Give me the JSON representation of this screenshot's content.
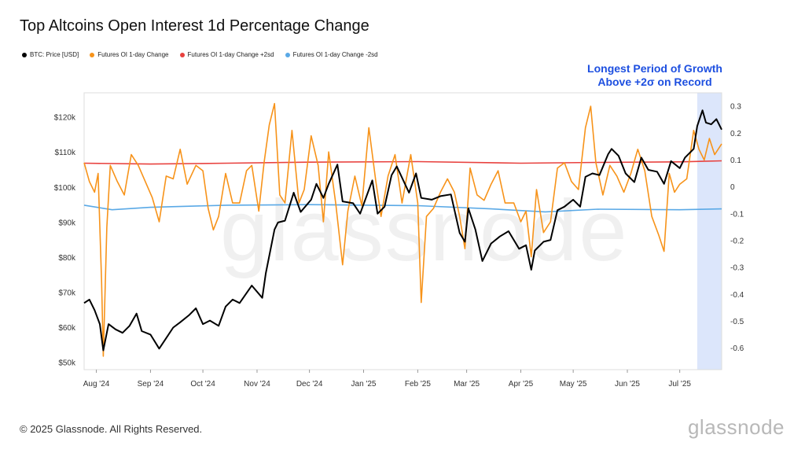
{
  "title": "Top Altcoins Open Interest 1d Percentage Change",
  "legend": [
    {
      "label": "BTC: Price [USD]",
      "color": "#000000"
    },
    {
      "label": "Futures OI 1-day Change",
      "color": "#f7931a"
    },
    {
      "label": "Futures OI 1-day Change +2sd",
      "color": "#e8413e"
    },
    {
      "label": "Futures OI 1-day Change -2sd",
      "color": "#5aa9e6"
    }
  ],
  "annotation": {
    "line1": "Longest Period of Growth",
    "line2": "Above +2σ on Record"
  },
  "footer": "© 2025 Glassnode. All Rights Reserved.",
  "brand": "glassnode",
  "watermark": "glassnode",
  "chart_data": {
    "type": "line",
    "x_ticks": [
      "Aug '24",
      "Sep '24",
      "Oct '24",
      "Nov '24",
      "Dec '24",
      "Jan '25",
      "Feb '25",
      "Mar '25",
      "Apr '25",
      "May '25",
      "Jun '25",
      "Jul '25"
    ],
    "y_left_ticks": [
      "$50k",
      "$60k",
      "$70k",
      "$80k",
      "$90k",
      "$100k",
      "$110k",
      "$120k"
    ],
    "y_right_ticks": [
      "0.3",
      "0.2",
      "0.1",
      "0",
      "-0.1",
      "-0.2",
      "-0.3",
      "-0.4",
      "-0.5",
      "-0.6"
    ],
    "ylim_left": [
      48000,
      127000
    ],
    "ylim_right": [
      -0.68,
      0.35
    ],
    "highlight_region": {
      "from": "2025-07-11",
      "to": "2025-07-25",
      "color": "#dce6fb"
    },
    "series": [
      {
        "name": "BTC: Price [USD]",
        "axis": "left",
        "color": "#000000",
        "points": [
          [
            "2024-07-25",
            67000
          ],
          [
            "2024-07-28",
            68000
          ],
          [
            "2024-07-31",
            65000
          ],
          [
            "2024-08-03",
            61000
          ],
          [
            "2024-08-05",
            53500
          ],
          [
            "2024-08-08",
            61000
          ],
          [
            "2024-08-12",
            59500
          ],
          [
            "2024-08-16",
            58500
          ],
          [
            "2024-08-20",
            60500
          ],
          [
            "2024-08-24",
            64000
          ],
          [
            "2024-08-27",
            59000
          ],
          [
            "2024-09-01",
            58000
          ],
          [
            "2024-09-06",
            54000
          ],
          [
            "2024-09-10",
            57000
          ],
          [
            "2024-09-14",
            60000
          ],
          [
            "2024-09-18",
            61500
          ],
          [
            "2024-09-23",
            63500
          ],
          [
            "2024-09-27",
            65500
          ],
          [
            "2024-10-01",
            61000
          ],
          [
            "2024-10-05",
            62000
          ],
          [
            "2024-10-10",
            60500
          ],
          [
            "2024-10-14",
            66000
          ],
          [
            "2024-10-18",
            68000
          ],
          [
            "2024-10-22",
            67000
          ],
          [
            "2024-10-29",
            72000
          ],
          [
            "2024-11-04",
            68500
          ],
          [
            "2024-11-06",
            75500
          ],
          [
            "2024-11-11",
            88000
          ],
          [
            "2024-11-13",
            90000
          ],
          [
            "2024-11-17",
            90500
          ],
          [
            "2024-11-22",
            98500
          ],
          [
            "2024-11-26",
            93000
          ],
          [
            "2024-12-02",
            96500
          ],
          [
            "2024-12-05",
            101000
          ],
          [
            "2024-12-09",
            97000
          ],
          [
            "2024-12-12",
            101000
          ],
          [
            "2024-12-17",
            106500
          ],
          [
            "2024-12-20",
            96000
          ],
          [
            "2024-12-26",
            95500
          ],
          [
            "2024-12-30",
            92500
          ],
          [
            "2025-01-06",
            102000
          ],
          [
            "2025-01-09",
            92500
          ],
          [
            "2025-01-13",
            94500
          ],
          [
            "2025-01-17",
            103500
          ],
          [
            "2025-01-20",
            106000
          ],
          [
            "2025-01-27",
            98500
          ],
          [
            "2025-01-31",
            104000
          ],
          [
            "2025-02-03",
            97000
          ],
          [
            "2025-02-09",
            96500
          ],
          [
            "2025-02-14",
            97500
          ],
          [
            "2025-02-20",
            98000
          ],
          [
            "2025-02-25",
            87000
          ],
          [
            "2025-02-28",
            84500
          ],
          [
            "2025-03-02",
            94000
          ],
          [
            "2025-03-06",
            88000
          ],
          [
            "2025-03-10",
            79000
          ],
          [
            "2025-03-15",
            84000
          ],
          [
            "2025-03-20",
            86000
          ],
          [
            "2025-03-25",
            87500
          ],
          [
            "2025-03-31",
            82500
          ],
          [
            "2025-04-04",
            83500
          ],
          [
            "2025-04-07",
            76500
          ],
          [
            "2025-04-09",
            82000
          ],
          [
            "2025-04-14",
            84500
          ],
          [
            "2025-04-18",
            85000
          ],
          [
            "2025-04-22",
            93500
          ],
          [
            "2025-04-26",
            94500
          ],
          [
            "2025-05-01",
            96500
          ],
          [
            "2025-05-05",
            94500
          ],
          [
            "2025-05-08",
            103000
          ],
          [
            "2025-05-12",
            104000
          ],
          [
            "2025-05-16",
            103500
          ],
          [
            "2025-05-21",
            109500
          ],
          [
            "2025-05-23",
            111000
          ],
          [
            "2025-05-27",
            109000
          ],
          [
            "2025-05-31",
            104000
          ],
          [
            "2025-06-05",
            101500
          ],
          [
            "2025-06-09",
            108500
          ],
          [
            "2025-06-13",
            105000
          ],
          [
            "2025-06-18",
            104500
          ],
          [
            "2025-06-22",
            101000
          ],
          [
            "2025-06-26",
            107500
          ],
          [
            "2025-07-01",
            105500
          ],
          [
            "2025-07-04",
            108500
          ],
          [
            "2025-07-09",
            111000
          ],
          [
            "2025-07-11",
            117500
          ],
          [
            "2025-07-14",
            122000
          ],
          [
            "2025-07-16",
            118500
          ],
          [
            "2025-07-19",
            118000
          ],
          [
            "2025-07-22",
            119500
          ],
          [
            "2025-07-25",
            116500
          ]
        ]
      },
      {
        "name": "Futures OI 1-day Change",
        "axis": "right",
        "color": "#f7931a",
        "points": [
          [
            "2024-07-25",
            0.09
          ],
          [
            "2024-07-28",
            0.02
          ],
          [
            "2024-07-31",
            -0.02
          ],
          [
            "2024-08-02",
            0.05
          ],
          [
            "2024-08-04",
            -0.35
          ],
          [
            "2024-08-05",
            -0.63
          ],
          [
            "2024-08-07",
            -0.15
          ],
          [
            "2024-08-09",
            0.08
          ],
          [
            "2024-08-13",
            0.02
          ],
          [
            "2024-08-17",
            -0.03
          ],
          [
            "2024-08-21",
            0.12
          ],
          [
            "2024-08-25",
            0.08
          ],
          [
            "2024-08-29",
            0.02
          ],
          [
            "2024-09-02",
            -0.04
          ],
          [
            "2024-09-06",
            -0.13
          ],
          [
            "2024-09-10",
            0.04
          ],
          [
            "2024-09-14",
            0.03
          ],
          [
            "2024-09-18",
            0.14
          ],
          [
            "2024-09-22",
            0.01
          ],
          [
            "2024-09-27",
            0.08
          ],
          [
            "2024-10-01",
            0.06
          ],
          [
            "2024-10-04",
            -0.08
          ],
          [
            "2024-10-07",
            -0.16
          ],
          [
            "2024-10-10",
            -0.11
          ],
          [
            "2024-10-14",
            0.05
          ],
          [
            "2024-10-18",
            -0.06
          ],
          [
            "2024-10-22",
            -0.06
          ],
          [
            "2024-10-26",
            0.06
          ],
          [
            "2024-10-29",
            0.08
          ],
          [
            "2024-11-02",
            -0.09
          ],
          [
            "2024-11-05",
            0.09
          ],
          [
            "2024-11-08",
            0.23
          ],
          [
            "2024-11-11",
            0.31
          ],
          [
            "2024-11-14",
            -0.03
          ],
          [
            "2024-11-17",
            -0.06
          ],
          [
            "2024-11-21",
            0.21
          ],
          [
            "2024-11-25",
            -0.06
          ],
          [
            "2024-11-28",
            -0.01
          ],
          [
            "2024-12-02",
            0.19
          ],
          [
            "2024-12-06",
            0.08
          ],
          [
            "2024-12-09",
            -0.13
          ],
          [
            "2024-12-12",
            0.13
          ],
          [
            "2024-12-16",
            -0.06
          ],
          [
            "2024-12-20",
            -0.29
          ],
          [
            "2024-12-23",
            -0.09
          ],
          [
            "2024-12-27",
            0.04
          ],
          [
            "2024-12-31",
            -0.07
          ],
          [
            "2025-01-04",
            0.22
          ],
          [
            "2025-01-08",
            0.02
          ],
          [
            "2025-01-11",
            -0.11
          ],
          [
            "2025-01-15",
            0.04
          ],
          [
            "2025-01-19",
            0.12
          ],
          [
            "2025-01-23",
            -0.06
          ],
          [
            "2025-01-28",
            0.12
          ],
          [
            "2025-02-01",
            -0.06
          ],
          [
            "2025-02-03",
            -0.43
          ],
          [
            "2025-02-06",
            -0.11
          ],
          [
            "2025-02-10",
            -0.08
          ],
          [
            "2025-02-14",
            -0.02
          ],
          [
            "2025-02-18",
            0.03
          ],
          [
            "2025-02-22",
            -0.02
          ],
          [
            "2025-02-25",
            -0.11
          ],
          [
            "2025-02-28",
            -0.23
          ],
          [
            "2025-03-03",
            0.07
          ],
          [
            "2025-03-07",
            -0.03
          ],
          [
            "2025-03-11",
            -0.05
          ],
          [
            "2025-03-15",
            0.01
          ],
          [
            "2025-03-19",
            0.06
          ],
          [
            "2025-03-23",
            -0.06
          ],
          [
            "2025-03-28",
            -0.06
          ],
          [
            "2025-04-01",
            -0.13
          ],
          [
            "2025-04-04",
            -0.09
          ],
          [
            "2025-04-07",
            -0.26
          ],
          [
            "2025-04-10",
            -0.01
          ],
          [
            "2025-04-14",
            -0.17
          ],
          [
            "2025-04-18",
            -0.13
          ],
          [
            "2025-04-22",
            0.07
          ],
          [
            "2025-04-26",
            0.09
          ],
          [
            "2025-04-30",
            0.02
          ],
          [
            "2025-05-04",
            -0.01
          ],
          [
            "2025-05-08",
            0.22
          ],
          [
            "2025-05-11",
            0.3
          ],
          [
            "2025-05-14",
            0.09
          ],
          [
            "2025-05-18",
            -0.03
          ],
          [
            "2025-05-22",
            0.08
          ],
          [
            "2025-05-26",
            0.04
          ],
          [
            "2025-05-30",
            -0.02
          ],
          [
            "2025-06-03",
            0.05
          ],
          [
            "2025-06-07",
            0.14
          ],
          [
            "2025-06-11",
            0.06
          ],
          [
            "2025-06-15",
            -0.11
          ],
          [
            "2025-06-19",
            -0.18
          ],
          [
            "2025-06-22",
            -0.24
          ],
          [
            "2025-06-25",
            0.05
          ],
          [
            "2025-06-28",
            -0.02
          ],
          [
            "2025-07-01",
            0.01
          ],
          [
            "2025-07-05",
            0.03
          ],
          [
            "2025-07-09",
            0.21
          ],
          [
            "2025-07-12",
            0.14
          ],
          [
            "2025-07-15",
            0.1
          ],
          [
            "2025-07-18",
            0.18
          ],
          [
            "2025-07-21",
            0.12
          ],
          [
            "2025-07-25",
            0.16
          ]
        ]
      },
      {
        "name": "Futures OI 1-day Change +2sd",
        "axis": "right",
        "color": "#e8413e",
        "points": [
          [
            "2024-07-25",
            0.088
          ],
          [
            "2024-09-01",
            0.085
          ],
          [
            "2024-10-15",
            0.088
          ],
          [
            "2024-12-01",
            0.092
          ],
          [
            "2025-02-01",
            0.094
          ],
          [
            "2025-04-01",
            0.088
          ],
          [
            "2025-05-15",
            0.091
          ],
          [
            "2025-07-01",
            0.093
          ],
          [
            "2025-07-25",
            0.097
          ]
        ]
      },
      {
        "name": "Futures OI 1-day Change -2sd",
        "axis": "right",
        "color": "#5aa9e6",
        "points": [
          [
            "2024-07-25",
            -0.068
          ],
          [
            "2024-08-10",
            -0.085
          ],
          [
            "2024-09-01",
            -0.076
          ],
          [
            "2024-10-15",
            -0.068
          ],
          [
            "2024-12-01",
            -0.066
          ],
          [
            "2025-02-01",
            -0.07
          ],
          [
            "2025-03-15",
            -0.082
          ],
          [
            "2025-04-15",
            -0.093
          ],
          [
            "2025-05-15",
            -0.083
          ],
          [
            "2025-07-01",
            -0.085
          ],
          [
            "2025-07-25",
            -0.082
          ]
        ]
      }
    ]
  }
}
